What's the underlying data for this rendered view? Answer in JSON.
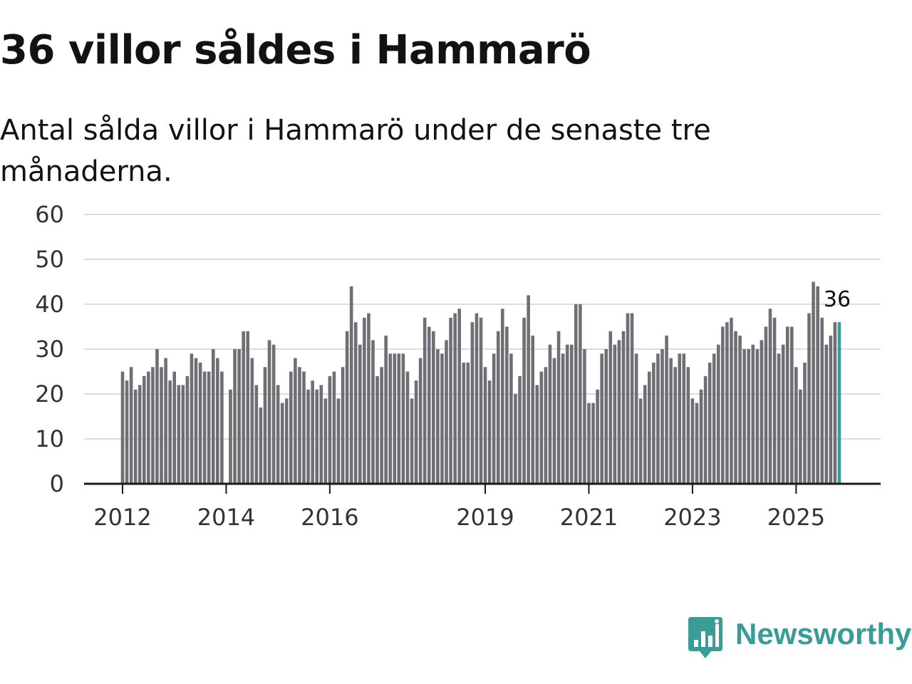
{
  "header": {
    "title": "36 villor såldes i Hammarö",
    "subtitle": "Antal sålda villor i Hammarö under de senaste tre månaderna."
  },
  "brand": {
    "name": "Newsworthy",
    "color": "#3a9c97"
  },
  "colors": {
    "bar": "#6f6e74",
    "highlight": "#3a9c97",
    "grid": "#dcdcdc",
    "axis": "#1a1a1a"
  },
  "chart_data": {
    "type": "bar",
    "title": "36 villor såldes i Hammarö",
    "xlabel": "",
    "ylabel": "",
    "ylim": [
      0,
      60
    ],
    "yticks": [
      0,
      10,
      20,
      30,
      40,
      50,
      60
    ],
    "grid": true,
    "start": "2012-01",
    "xticks": [
      {
        "label": "2012",
        "index": 0
      },
      {
        "label": "2014",
        "index": 24
      },
      {
        "label": "2016",
        "index": 48
      },
      {
        "label": "2019",
        "index": 84
      },
      {
        "label": "2021",
        "index": 108
      },
      {
        "label": "2023",
        "index": 132
      },
      {
        "label": "2025",
        "index": 156
      }
    ],
    "values": [
      25,
      23,
      26,
      21,
      22,
      24,
      25,
      26,
      30,
      26,
      28,
      23,
      25,
      22,
      22,
      24,
      29,
      28,
      27,
      25,
      25,
      30,
      28,
      25,
      0,
      21,
      30,
      30,
      34,
      34,
      28,
      22,
      17,
      26,
      32,
      31,
      22,
      18,
      19,
      25,
      28,
      26,
      25,
      21,
      23,
      21,
      22,
      19,
      24,
      25,
      19,
      26,
      34,
      44,
      36,
      31,
      37,
      38,
      32,
      24,
      26,
      33,
      29,
      29,
      29,
      29,
      25,
      19,
      23,
      28,
      37,
      35,
      34,
      30,
      29,
      32,
      37,
      38,
      39,
      27,
      27,
      36,
      38,
      37,
      26,
      23,
      29,
      34,
      39,
      35,
      29,
      20,
      24,
      37,
      42,
      33,
      22,
      25,
      26,
      31,
      28,
      34,
      29,
      31,
      31,
      40,
      40,
      30,
      18,
      18,
      21,
      29,
      30,
      34,
      31,
      32,
      34,
      38,
      38,
      29,
      19,
      22,
      25,
      27,
      29,
      30,
      33,
      28,
      26,
      29,
      29,
      26,
      19,
      18,
      21,
      24,
      27,
      29,
      31,
      35,
      36,
      37,
      34,
      33,
      30,
      30,
      31,
      30,
      32,
      35,
      39,
      37,
      29,
      31,
      35,
      35,
      26,
      21,
      27,
      38,
      45,
      44,
      37,
      31,
      33,
      36,
      36
    ],
    "highlight_index": 166,
    "highlight_label": "36"
  }
}
